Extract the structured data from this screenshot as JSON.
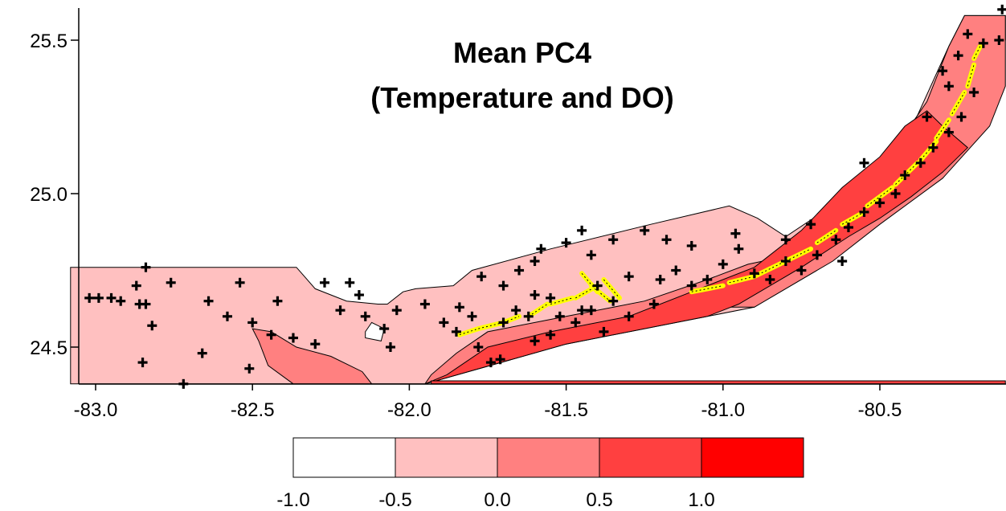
{
  "chart_data": {
    "type": "contour-map",
    "title": [
      "Mean PC4",
      "(Temperature and DO)"
    ],
    "x_ticks": [
      -83.0,
      -82.5,
      -82.0,
      -81.5,
      -81.0,
      -80.5
    ],
    "x_tick_labels": [
      "-83.0",
      "-82.5",
      "-82.0",
      "-81.5",
      "-81.0",
      "-80.5"
    ],
    "y_ticks": [
      24.5,
      25.0,
      25.5
    ],
    "y_tick_labels": [
      "24.5",
      "25.0",
      "25.5"
    ],
    "xlim": [
      -83.08,
      -80.1
    ],
    "ylim": [
      24.38,
      25.62
    ],
    "grid": false,
    "legend": {
      "placement": "bottom-center",
      "boundaries": [
        "-1.0",
        "-0.5",
        "0.0",
        "0.5",
        "1.0"
      ],
      "colors": [
        "#ffffff",
        "#ffc0c0",
        "#ff8080",
        "#ff4040",
        "#ff0000"
      ]
    },
    "land_color": "#ffff00",
    "regions": [
      {
        "name": "level--0.5-to-0.0",
        "color": "#ffc0c0",
        "polygon": [
          [
            -83.08,
            24.76
          ],
          [
            -82.36,
            24.76
          ],
          [
            -82.3,
            24.69
          ],
          [
            -82.2,
            24.65
          ],
          [
            -82.1,
            24.64
          ],
          [
            -82.07,
            24.64
          ],
          [
            -82.02,
            24.68
          ],
          [
            -81.98,
            24.69
          ],
          [
            -81.86,
            24.7
          ],
          [
            -81.8,
            24.75
          ],
          [
            -81.55,
            24.82
          ],
          [
            -81.23,
            24.9
          ],
          [
            -80.98,
            24.96
          ],
          [
            -80.89,
            24.92
          ],
          [
            -80.8,
            24.86
          ],
          [
            -80.55,
            25.03
          ],
          [
            -80.4,
            25.21
          ],
          [
            -80.28,
            25.48
          ],
          [
            -80.23,
            25.58
          ],
          [
            -80.1,
            25.58
          ],
          [
            -80.1,
            25.5
          ],
          [
            -80.18,
            25.2
          ],
          [
            -80.3,
            25.05
          ],
          [
            -80.6,
            24.83
          ],
          [
            -80.9,
            24.63
          ],
          [
            -81.5,
            24.51
          ],
          [
            -81.95,
            24.38
          ],
          [
            -83.08,
            24.38
          ]
        ]
      },
      {
        "name": "level-0.0-to-0.5-west",
        "color": "#ff8080",
        "polygon": [
          [
            -82.37,
            24.38
          ],
          [
            -82.45,
            24.44
          ],
          [
            -82.48,
            24.52
          ],
          [
            -82.5,
            24.56
          ],
          [
            -82.44,
            24.55
          ],
          [
            -82.36,
            24.5
          ],
          [
            -82.25,
            24.47
          ],
          [
            -82.15,
            24.42
          ],
          [
            -82.12,
            24.38
          ]
        ]
      },
      {
        "name": "level-0.0-to-0.5-east",
        "color": "#ff8080",
        "polygon": [
          [
            -81.95,
            24.38
          ],
          [
            -81.5,
            24.51
          ],
          [
            -81.0,
            24.63
          ],
          [
            -80.9,
            24.63
          ],
          [
            -80.65,
            24.78
          ],
          [
            -80.5,
            24.9
          ],
          [
            -80.3,
            25.05
          ],
          [
            -80.15,
            25.22
          ],
          [
            -80.1,
            25.35
          ],
          [
            -80.1,
            25.58
          ],
          [
            -80.23,
            25.58
          ],
          [
            -80.28,
            25.48
          ],
          [
            -80.35,
            25.3
          ],
          [
            -80.43,
            25.18
          ],
          [
            -80.52,
            25.07
          ],
          [
            -80.6,
            24.97
          ],
          [
            -80.68,
            24.87
          ],
          [
            -80.78,
            24.8
          ],
          [
            -80.92,
            24.77
          ],
          [
            -81.05,
            24.72
          ],
          [
            -81.25,
            24.65
          ],
          [
            -81.5,
            24.6
          ],
          [
            -81.75,
            24.55
          ],
          [
            -81.85,
            24.48
          ],
          [
            -81.93,
            24.41
          ]
        ]
      },
      {
        "name": "level-0.5-to-1.0",
        "color": "#ff4040",
        "polygon": [
          [
            -81.95,
            24.38
          ],
          [
            -81.5,
            24.51
          ],
          [
            -81.05,
            24.6
          ],
          [
            -80.95,
            24.64
          ],
          [
            -80.75,
            24.76
          ],
          [
            -80.6,
            24.86
          ],
          [
            -80.5,
            24.92
          ],
          [
            -80.4,
            24.99
          ],
          [
            -80.3,
            25.07
          ],
          [
            -80.22,
            25.15
          ],
          [
            -80.3,
            25.22
          ],
          [
            -80.35,
            25.27
          ],
          [
            -80.42,
            25.22
          ],
          [
            -80.5,
            25.12
          ],
          [
            -80.62,
            25.02
          ],
          [
            -80.75,
            24.88
          ],
          [
            -80.9,
            24.76
          ],
          [
            -81.1,
            24.68
          ],
          [
            -81.3,
            24.6
          ],
          [
            -81.55,
            24.55
          ],
          [
            -81.75,
            24.5
          ],
          [
            -81.88,
            24.41
          ]
        ]
      },
      {
        "name": "level-low-pocket",
        "color": "#ffffff",
        "polygon": [
          [
            -82.14,
            24.55
          ],
          [
            -82.12,
            24.58
          ],
          [
            -82.08,
            24.56
          ],
          [
            -82.09,
            24.52
          ],
          [
            -82.14,
            24.53
          ]
        ]
      },
      {
        "name": "level-bottom-strip",
        "color": "#ff4040",
        "polygon": [
          [
            -81.93,
            24.38
          ],
          [
            -80.1,
            24.38
          ],
          [
            -80.1,
            24.39
          ],
          [
            -81.93,
            24.39
          ]
        ]
      }
    ],
    "stations": [
      [
        -83.02,
        24.66
      ],
      [
        -82.99,
        24.66
      ],
      [
        -82.95,
        24.66
      ],
      [
        -82.92,
        24.65
      ],
      [
        -82.86,
        24.64
      ],
      [
        -82.84,
        24.64
      ],
      [
        -82.87,
        24.7
      ],
      [
        -82.84,
        24.76
      ],
      [
        -82.76,
        24.71
      ],
      [
        -82.82,
        24.57
      ],
      [
        -82.85,
        24.45
      ],
      [
        -82.72,
        24.38
      ],
      [
        -82.66,
        24.48
      ],
      [
        -82.64,
        24.65
      ],
      [
        -82.58,
        24.6
      ],
      [
        -82.54,
        24.71
      ],
      [
        -82.51,
        24.43
      ],
      [
        -82.5,
        24.58
      ],
      [
        -82.44,
        24.54
      ],
      [
        -82.42,
        24.65
      ],
      [
        -82.37,
        24.53
      ],
      [
        -82.3,
        24.51
      ],
      [
        -82.27,
        24.71
      ],
      [
        -82.22,
        24.62
      ],
      [
        -82.19,
        24.71
      ],
      [
        -82.16,
        24.67
      ],
      [
        -82.14,
        24.6
      ],
      [
        -82.08,
        24.56
      ],
      [
        -82.04,
        24.62
      ],
      [
        -81.95,
        24.64
      ],
      [
        -81.89,
        24.58
      ],
      [
        -81.85,
        24.55
      ],
      [
        -81.84,
        24.63
      ],
      [
        -81.8,
        24.6
      ],
      [
        -81.78,
        24.5
      ],
      [
        -81.74,
        24.45
      ],
      [
        -81.71,
        24.46
      ],
      [
        -81.7,
        24.58
      ],
      [
        -81.66,
        24.62
      ],
      [
        -81.62,
        24.6
      ],
      [
        -81.6,
        24.52
      ],
      [
        -81.55,
        24.54
      ],
      [
        -81.52,
        24.6
      ],
      [
        -81.47,
        24.58
      ],
      [
        -81.42,
        24.62
      ],
      [
        -81.38,
        24.55
      ],
      [
        -81.35,
        24.65
      ],
      [
        -81.3,
        24.6
      ],
      [
        -81.22,
        24.64
      ],
      [
        -81.2,
        24.72
      ],
      [
        -81.15,
        24.75
      ],
      [
        -81.1,
        24.7
      ],
      [
        -81.05,
        24.72
      ],
      [
        -81.0,
        24.77
      ],
      [
        -80.95,
        24.82
      ],
      [
        -80.9,
        24.74
      ],
      [
        -80.85,
        24.72
      ],
      [
        -80.8,
        24.78
      ],
      [
        -80.75,
        24.75
      ],
      [
        -80.7,
        24.8
      ],
      [
        -80.64,
        24.85
      ],
      [
        -80.62,
        24.78
      ],
      [
        -80.6,
        24.89
      ],
      [
        -80.55,
        24.94
      ],
      [
        -80.5,
        24.97
      ],
      [
        -80.45,
        25.0
      ],
      [
        -80.42,
        25.06
      ],
      [
        -80.37,
        25.1
      ],
      [
        -80.33,
        25.15
      ],
      [
        -80.28,
        25.2
      ],
      [
        -80.24,
        25.25
      ],
      [
        -80.2,
        25.33
      ],
      [
        -80.25,
        25.45
      ],
      [
        -80.22,
        25.52
      ],
      [
        -80.17,
        25.49
      ],
      [
        -80.12,
        25.5
      ],
      [
        -80.11,
        25.6
      ],
      [
        -81.35,
        24.85
      ],
      [
        -81.42,
        24.8
      ],
      [
        -81.5,
        24.84
      ],
      [
        -81.58,
        24.82
      ],
      [
        -81.6,
        24.78
      ],
      [
        -81.65,
        24.75
      ],
      [
        -81.7,
        24.7
      ],
      [
        -81.77,
        24.73
      ],
      [
        -81.45,
        24.88
      ],
      [
        -81.25,
        24.88
      ],
      [
        -81.18,
        24.85
      ],
      [
        -81.1,
        24.83
      ],
      [
        -80.96,
        24.87
      ],
      [
        -81.4,
        24.7
      ],
      [
        -81.3,
        24.73
      ],
      [
        -81.55,
        24.66
      ],
      [
        -81.6,
        24.67
      ],
      [
        -81.45,
        24.62
      ],
      [
        -80.8,
        24.85
      ],
      [
        -80.72,
        24.9
      ],
      [
        -80.55,
        25.1
      ],
      [
        -80.35,
        25.25
      ],
      [
        -80.28,
        25.35
      ],
      [
        -80.3,
        25.4
      ],
      [
        -82.06,
        24.5
      ]
    ],
    "land_segments": [
      [
        -81.84,
        24.54,
        -81.78,
        24.56
      ],
      [
        -81.78,
        24.56,
        -81.7,
        24.58
      ],
      [
        -81.7,
        24.58,
        -81.65,
        24.6
      ],
      [
        -81.62,
        24.6,
        -81.56,
        24.64
      ],
      [
        -81.55,
        24.64,
        -81.48,
        24.66
      ],
      [
        -81.47,
        24.66,
        -81.4,
        24.7
      ],
      [
        -81.42,
        24.7,
        -81.36,
        24.65
      ],
      [
        -81.38,
        24.72,
        -81.33,
        24.66
      ],
      [
        -81.45,
        24.74,
        -81.4,
        24.68
      ],
      [
        -81.1,
        24.68,
        -81.0,
        24.7
      ],
      [
        -80.98,
        24.71,
        -80.9,
        24.73
      ],
      [
        -80.9,
        24.73,
        -80.8,
        24.78
      ],
      [
        -80.8,
        24.78,
        -80.72,
        24.82
      ],
      [
        -80.7,
        24.84,
        -80.64,
        24.88
      ],
      [
        -80.62,
        24.9,
        -80.55,
        24.94
      ],
      [
        -80.54,
        24.96,
        -80.46,
        25.02
      ],
      [
        -80.45,
        25.03,
        -80.38,
        25.1
      ],
      [
        -80.37,
        25.11,
        -80.32,
        25.17
      ],
      [
        -80.32,
        25.18,
        -80.28,
        25.24
      ],
      [
        -80.27,
        25.26,
        -80.23,
        25.33
      ],
      [
        -80.22,
        25.35,
        -80.2,
        25.42
      ],
      [
        -80.2,
        25.44,
        -80.18,
        25.48
      ]
    ]
  }
}
